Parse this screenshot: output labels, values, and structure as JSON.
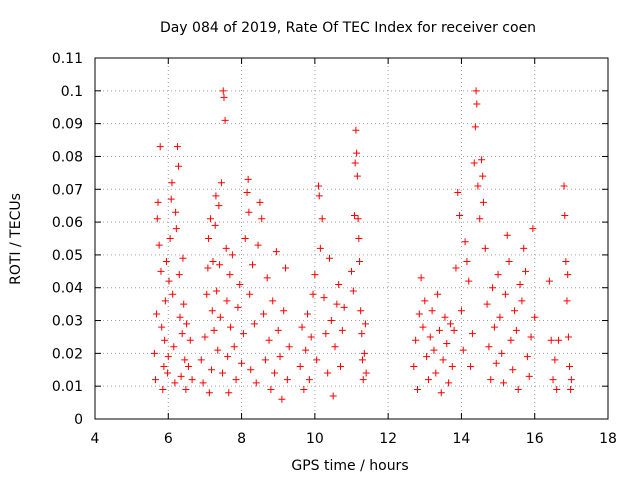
{
  "chart_data": {
    "type": "scatter",
    "title": "Day 084 of 2019, Rate Of TEC Index for receiver coen",
    "xlabel": "GPS time / hours",
    "ylabel": "ROTI / TECUs",
    "xlim": [
      4,
      18
    ],
    "ylim": [
      0,
      0.11
    ],
    "xticks": [
      4,
      6,
      8,
      10,
      12,
      14,
      16,
      18
    ],
    "xtick_labels": [
      "4",
      "6",
      "8",
      "10",
      "12",
      "14",
      "16",
      "18"
    ],
    "yticks": [
      0,
      0.01,
      0.02,
      0.03,
      0.04,
      0.05,
      0.06,
      0.07,
      0.08,
      0.09,
      0.1,
      0.11
    ],
    "ytick_labels": [
      "0",
      "0.01",
      "0.02",
      "0.03",
      "0.04",
      "0.05",
      "0.06",
      "0.07",
      "0.08",
      "0.09",
      "0.1",
      "0.11"
    ],
    "grid": true,
    "marker": "+",
    "color": "#ff0000",
    "series": [
      {
        "name": "ROTI",
        "points": [
          [
            5.62,
            0.02
          ],
          [
            5.65,
            0.012
          ],
          [
            5.68,
            0.032
          ],
          [
            5.7,
            0.061
          ],
          [
            5.72,
            0.066
          ],
          [
            5.75,
            0.053
          ],
          [
            5.78,
            0.083
          ],
          [
            5.8,
            0.045
          ],
          [
            5.82,
            0.028
          ],
          [
            5.85,
            0.009
          ],
          [
            5.88,
            0.016
          ],
          [
            5.9,
            0.024
          ],
          [
            5.92,
            0.036
          ],
          [
            5.95,
            0.048
          ],
          [
            5.98,
            0.014
          ],
          [
            6.0,
            0.019
          ],
          [
            6.02,
            0.042
          ],
          [
            6.05,
            0.055
          ],
          [
            6.08,
            0.067
          ],
          [
            6.1,
            0.072
          ],
          [
            6.12,
            0.038
          ],
          [
            6.15,
            0.022
          ],
          [
            6.18,
            0.011
          ],
          [
            6.2,
            0.063
          ],
          [
            6.22,
            0.058
          ],
          [
            6.25,
            0.083
          ],
          [
            6.28,
            0.077
          ],
          [
            6.3,
            0.044
          ],
          [
            6.32,
            0.031
          ],
          [
            6.35,
            0.013
          ],
          [
            6.38,
            0.026
          ],
          [
            6.4,
            0.049
          ],
          [
            6.42,
            0.035
          ],
          [
            6.45,
            0.018
          ],
          [
            6.48,
            0.009
          ],
          [
            6.5,
            0.029
          ],
          [
            6.55,
            0.016
          ],
          [
            6.6,
            0.024
          ],
          [
            6.65,
            0.012
          ],
          [
            6.9,
            0.018
          ],
          [
            6.95,
            0.011
          ],
          [
            7.0,
            0.025
          ],
          [
            7.05,
            0.038
          ],
          [
            7.08,
            0.046
          ],
          [
            7.1,
            0.055
          ],
          [
            7.12,
            0.008
          ],
          [
            7.15,
            0.061
          ],
          [
            7.18,
            0.015
          ],
          [
            7.2,
            0.033
          ],
          [
            7.22,
            0.048
          ],
          [
            7.25,
            0.027
          ],
          [
            7.28,
            0.059
          ],
          [
            7.3,
            0.068
          ],
          [
            7.32,
            0.039
          ],
          [
            7.35,
            0.021
          ],
          [
            7.38,
            0.065
          ],
          [
            7.4,
            0.047
          ],
          [
            7.42,
            0.031
          ],
          [
            7.45,
            0.072
          ],
          [
            7.48,
            0.014
          ],
          [
            7.5,
            0.1
          ],
          [
            7.52,
            0.098
          ],
          [
            7.55,
            0.091
          ],
          [
            7.58,
            0.052
          ],
          [
            7.6,
            0.036
          ],
          [
            7.62,
            0.019
          ],
          [
            7.65,
            0.008
          ],
          [
            7.68,
            0.044
          ],
          [
            7.7,
            0.028
          ],
          [
            7.75,
            0.05
          ],
          [
            7.8,
            0.022
          ],
          [
            7.85,
            0.012
          ],
          [
            7.9,
            0.034
          ],
          [
            7.95,
            0.041
          ],
          [
            8.0,
            0.017
          ],
          [
            8.05,
            0.026
          ],
          [
            8.1,
            0.055
          ],
          [
            8.15,
            0.069
          ],
          [
            8.18,
            0.073
          ],
          [
            8.2,
            0.063
          ],
          [
            8.22,
            0.038
          ],
          [
            8.25,
            0.015
          ],
          [
            8.3,
            0.047
          ],
          [
            8.35,
            0.029
          ],
          [
            8.4,
            0.011
          ],
          [
            8.45,
            0.053
          ],
          [
            8.5,
            0.066
          ],
          [
            8.55,
            0.061
          ],
          [
            8.6,
            0.032
          ],
          [
            8.65,
            0.018
          ],
          [
            8.7,
            0.043
          ],
          [
            8.75,
            0.024
          ],
          [
            8.8,
            0.009
          ],
          [
            8.85,
            0.036
          ],
          [
            8.9,
            0.014
          ],
          [
            8.95,
            0.051
          ],
          [
            9.0,
            0.027
          ],
          [
            9.05,
            0.019
          ],
          [
            9.1,
            0.006
          ],
          [
            9.15,
            0.033
          ],
          [
            9.2,
            0.046
          ],
          [
            9.25,
            0.012
          ],
          [
            9.3,
            0.022
          ],
          [
            9.6,
            0.016
          ],
          [
            9.65,
            0.028
          ],
          [
            9.7,
            0.009
          ],
          [
            9.75,
            0.021
          ],
          [
            9.8,
            0.032
          ],
          [
            9.85,
            0.012
          ],
          [
            9.9,
            0.025
          ],
          [
            9.95,
            0.038
          ],
          [
            10.0,
            0.044
          ],
          [
            10.05,
            0.018
          ],
          [
            10.1,
            0.071
          ],
          [
            10.12,
            0.068
          ],
          [
            10.15,
            0.052
          ],
          [
            10.2,
            0.061
          ],
          [
            10.25,
            0.037
          ],
          [
            10.3,
            0.026
          ],
          [
            10.35,
            0.014
          ],
          [
            10.4,
            0.049
          ],
          [
            10.45,
            0.03
          ],
          [
            10.5,
            0.007
          ],
          [
            10.55,
            0.022
          ],
          [
            10.6,
            0.035
          ],
          [
            10.65,
            0.041
          ],
          [
            10.7,
            0.016
          ],
          [
            10.75,
            0.027
          ],
          [
            10.8,
            0.034
          ],
          [
            11.0,
            0.045
          ],
          [
            11.05,
            0.039
          ],
          [
            11.08,
            0.062
          ],
          [
            11.1,
            0.078
          ],
          [
            11.12,
            0.088
          ],
          [
            11.14,
            0.081
          ],
          [
            11.16,
            0.074
          ],
          [
            11.18,
            0.061
          ],
          [
            11.2,
            0.055
          ],
          [
            11.22,
            0.048
          ],
          [
            11.25,
            0.033
          ],
          [
            11.28,
            0.026
          ],
          [
            11.3,
            0.018
          ],
          [
            11.32,
            0.012
          ],
          [
            11.35,
            0.02
          ],
          [
            11.38,
            0.029
          ],
          [
            11.4,
            0.014
          ],
          [
            12.7,
            0.016
          ],
          [
            12.75,
            0.024
          ],
          [
            12.8,
            0.009
          ],
          [
            12.85,
            0.032
          ],
          [
            12.9,
            0.043
          ],
          [
            12.95,
            0.028
          ],
          [
            13.0,
            0.036
          ],
          [
            13.05,
            0.019
          ],
          [
            13.1,
            0.012
          ],
          [
            13.15,
            0.025
          ],
          [
            13.2,
            0.033
          ],
          [
            13.25,
            0.021
          ],
          [
            13.3,
            0.014
          ],
          [
            13.35,
            0.038
          ],
          [
            13.4,
            0.027
          ],
          [
            13.45,
            0.008
          ],
          [
            13.5,
            0.018
          ],
          [
            13.55,
            0.031
          ],
          [
            13.6,
            0.023
          ],
          [
            13.65,
            0.011
          ],
          [
            13.7,
            0.029
          ],
          [
            13.75,
            0.016
          ],
          [
            13.8,
            0.027
          ],
          [
            13.85,
            0.046
          ],
          [
            13.9,
            0.069
          ],
          [
            13.95,
            0.062
          ],
          [
            14.0,
            0.033
          ],
          [
            14.05,
            0.021
          ],
          [
            14.1,
            0.054
          ],
          [
            14.15,
            0.048
          ],
          [
            14.2,
            0.042
          ],
          [
            14.25,
            0.016
          ],
          [
            14.3,
            0.026
          ],
          [
            14.35,
            0.078
          ],
          [
            14.38,
            0.089
          ],
          [
            14.4,
            0.1
          ],
          [
            14.42,
            0.096
          ],
          [
            14.45,
            0.071
          ],
          [
            14.5,
            0.061
          ],
          [
            14.55,
            0.079
          ],
          [
            14.58,
            0.074
          ],
          [
            14.6,
            0.066
          ],
          [
            14.65,
            0.052
          ],
          [
            14.7,
            0.035
          ],
          [
            14.75,
            0.022
          ],
          [
            14.8,
            0.012
          ],
          [
            14.85,
            0.04
          ],
          [
            14.9,
            0.028
          ],
          [
            14.95,
            0.017
          ],
          [
            15.0,
            0.044
          ],
          [
            15.05,
            0.031
          ],
          [
            15.1,
            0.02
          ],
          [
            15.15,
            0.011
          ],
          [
            15.2,
            0.038
          ],
          [
            15.25,
            0.056
          ],
          [
            15.3,
            0.048
          ],
          [
            15.35,
            0.024
          ],
          [
            15.4,
            0.015
          ],
          [
            15.45,
            0.033
          ],
          [
            15.5,
            0.027
          ],
          [
            15.55,
            0.009
          ],
          [
            15.6,
            0.041
          ],
          [
            15.65,
            0.036
          ],
          [
            15.7,
            0.052
          ],
          [
            15.75,
            0.045
          ],
          [
            15.8,
            0.019
          ],
          [
            15.85,
            0.013
          ],
          [
            15.9,
            0.025
          ],
          [
            15.95,
            0.058
          ],
          [
            16.0,
            0.031
          ],
          [
            16.4,
            0.042
          ],
          [
            16.45,
            0.024
          ],
          [
            16.5,
            0.012
          ],
          [
            16.55,
            0.018
          ],
          [
            16.6,
            0.009
          ],
          [
            16.65,
            0.024
          ],
          [
            16.8,
            0.071
          ],
          [
            16.82,
            0.062
          ],
          [
            16.85,
            0.048
          ],
          [
            16.88,
            0.036
          ],
          [
            16.9,
            0.044
          ],
          [
            16.92,
            0.025
          ],
          [
            16.95,
            0.016
          ],
          [
            16.98,
            0.009
          ],
          [
            17.0,
            0.012
          ]
        ]
      }
    ]
  }
}
